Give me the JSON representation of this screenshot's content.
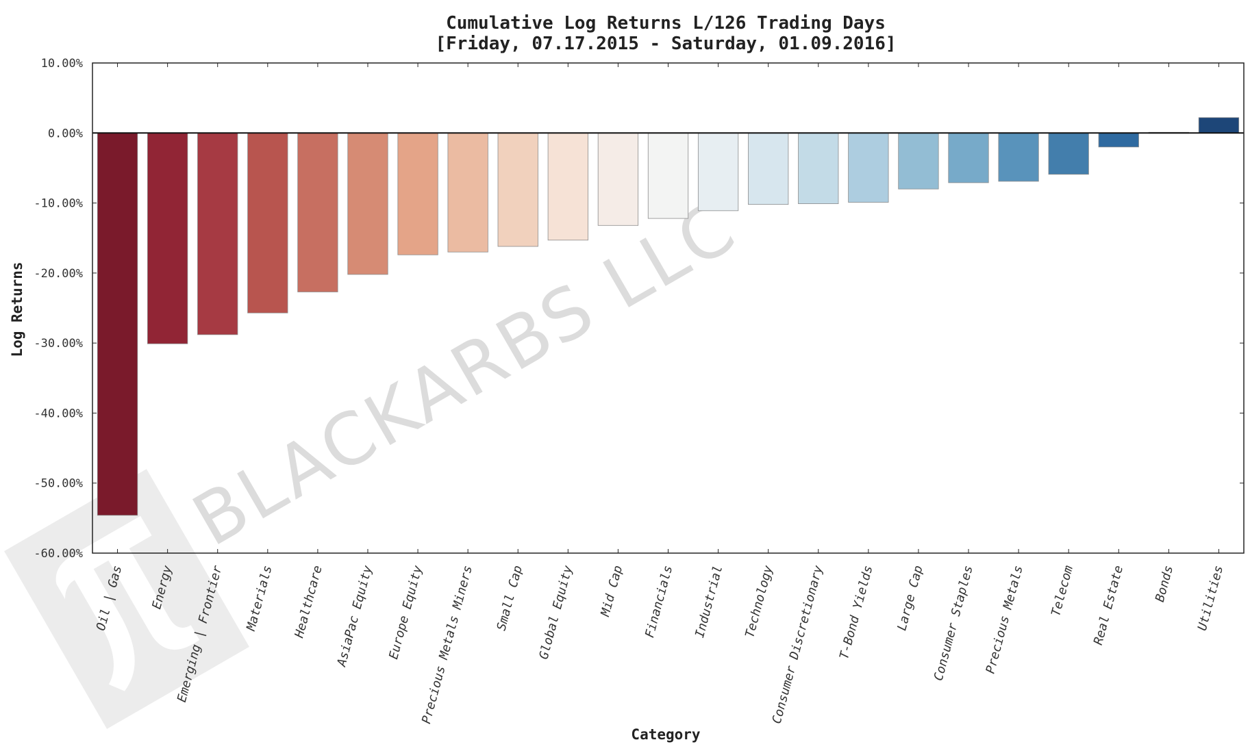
{
  "chart_data": {
    "type": "bar",
    "title": "Cumulative Log Returns L/126 Trading Days",
    "subtitle": "[Friday, 07.17.2015 - Saturday, 01.09.2016]",
    "xlabel": "Category",
    "ylabel": "Log Returns",
    "ylim": [
      -0.6,
      0.1
    ],
    "yticks": [
      0.1,
      0.0,
      -0.1,
      -0.2,
      -0.3,
      -0.4,
      -0.5,
      -0.6
    ],
    "ytick_labels": [
      "10.00%",
      "0.00%",
      "-10.00%",
      "-20.00%",
      "-30.00%",
      "-40.00%",
      "-50.00%",
      "-60.00%"
    ],
    "grid": false,
    "categories": [
      "Oil | Gas",
      "Energy",
      "Emerging | Frontier",
      "Materials",
      "Healthcare",
      "AsiaPac Equity",
      "Europe Equity",
      "Precious Metals Miners",
      "Small Cap",
      "Global Equity",
      "Mid Cap",
      "Financials",
      "Industrial",
      "Technology",
      "Consumer Discretionary",
      "T-Bond Yields",
      "Large Cap",
      "Consumer Staples",
      "Precious Metals",
      "Telecom",
      "Real Estate",
      "Bonds",
      "Utilities"
    ],
    "values": [
      -0.546,
      -0.301,
      -0.288,
      -0.257,
      -0.227,
      -0.202,
      -0.174,
      -0.17,
      -0.162,
      -0.153,
      -0.132,
      -0.122,
      -0.111,
      -0.102,
      -0.101,
      -0.099,
      -0.08,
      -0.071,
      -0.069,
      -0.059,
      -0.02,
      0.001,
      0.022
    ],
    "colors": [
      "#7a1a2b",
      "#912535",
      "#a63a43",
      "#b8554f",
      "#c76f61",
      "#d68b74",
      "#e4a488",
      "#ebbba2",
      "#f1d1bd",
      "#f6e2d6",
      "#f5ece7",
      "#f3f4f3",
      "#e7eef2",
      "#d7e6ee",
      "#c3dbe7",
      "#adcde0",
      "#93bdd4",
      "#77aac9",
      "#5993bb",
      "#437eac",
      "#2f6aa0",
      "#24568e",
      "#1d4678"
    ]
  },
  "watermark": {
    "text": "BLACKARBS LLC",
    "logo_icon": "pi-logo-icon"
  }
}
